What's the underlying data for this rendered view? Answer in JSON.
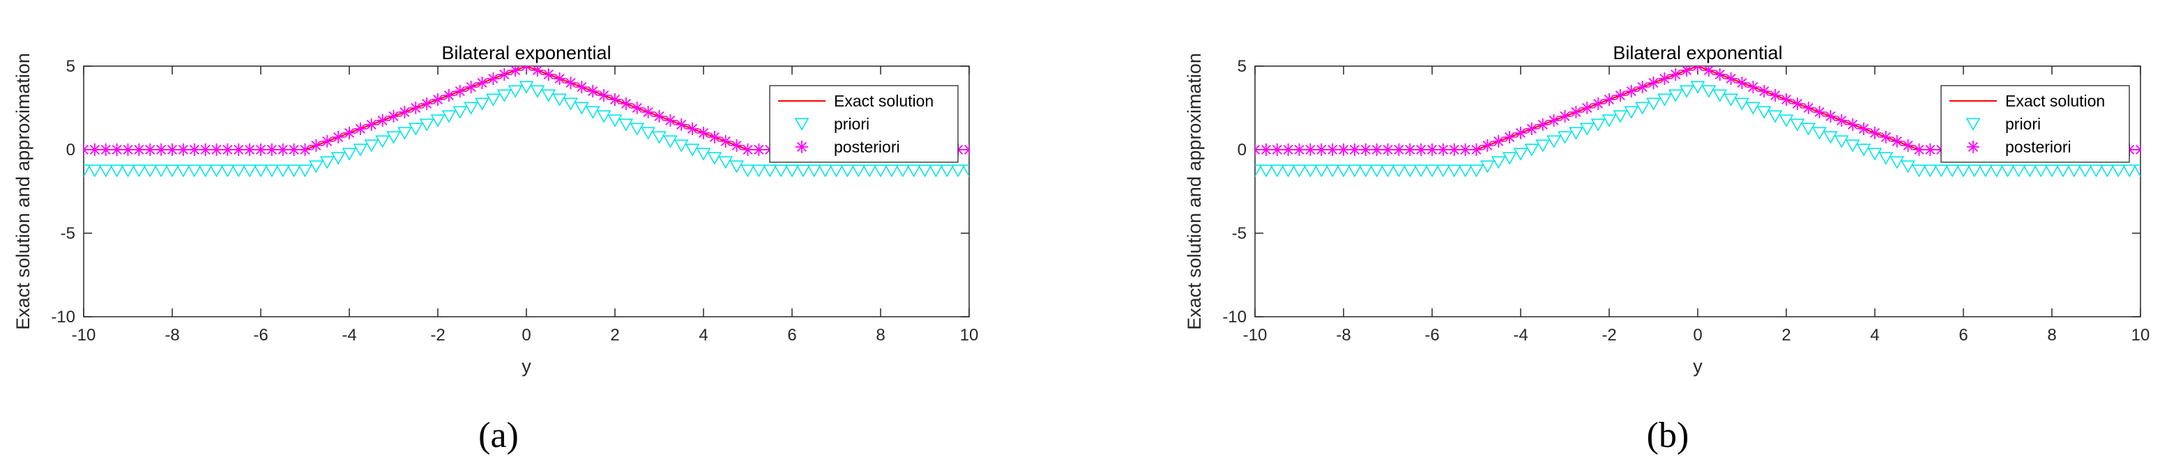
{
  "colors": {
    "exact": "#ff0000",
    "priori": "#00e5e5",
    "posteriori": "#ff00ff",
    "axis": "#262626",
    "frame": "#262626"
  },
  "chart_data": [
    {
      "type": "line",
      "title": "Bilateral exponential",
      "xlabel": "y",
      "ylabel": "Exact solution and approximation",
      "xlim": [
        -10,
        10
      ],
      "ylim": [
        -10,
        5
      ],
      "xticks": [
        -10,
        -8,
        -6,
        -4,
        -2,
        0,
        2,
        4,
        6,
        8,
        10
      ],
      "yticks": [
        -10,
        -5,
        0,
        5
      ],
      "xtick_labels": [
        "-10",
        "-8",
        "-6",
        "-4",
        "-2",
        "0",
        "2",
        "4",
        "6",
        "8",
        "10"
      ],
      "ytick_labels": [
        "-10",
        "-5",
        "0",
        "5"
      ],
      "caption": "(a)",
      "legend_position": "top-right",
      "grid": false,
      "series": [
        {
          "name": "Exact solution",
          "marker": "line",
          "x": [
            -10,
            -5,
            0,
            5,
            10
          ],
          "y": [
            0,
            0,
            5,
            0,
            0
          ]
        },
        {
          "name": "priori",
          "marker": "triangle-down",
          "x_range": [
            -10,
            10
          ],
          "num_points": 81,
          "peak": 3.75,
          "base": -1.25,
          "kink": 5
        },
        {
          "name": "posteriori",
          "marker": "asterisk",
          "x_range": [
            -10,
            10
          ],
          "num_points": 81,
          "peak": 5,
          "base": 0,
          "kink": 5
        }
      ]
    },
    {
      "type": "line",
      "title": "Bilateral exponential",
      "xlabel": "y",
      "ylabel": "Exact solution and approximation",
      "xlim": [
        -10,
        10
      ],
      "ylim": [
        -10,
        5
      ],
      "xticks": [
        -10,
        -8,
        -6,
        -4,
        -2,
        0,
        2,
        4,
        6,
        8,
        10
      ],
      "yticks": [
        -10,
        -5,
        0,
        5
      ],
      "xtick_labels": [
        "-10",
        "-8",
        "-6",
        "-4",
        "-2",
        "0",
        "2",
        "4",
        "6",
        "8",
        "10"
      ],
      "ytick_labels": [
        "-10",
        "-5",
        "0",
        "5"
      ],
      "caption": "(b)",
      "legend_position": "top-right",
      "grid": false,
      "series": [
        {
          "name": "Exact solution",
          "marker": "line",
          "x": [
            -10,
            -5,
            0,
            5,
            10
          ],
          "y": [
            0,
            0,
            5,
            0,
            0
          ]
        },
        {
          "name": "priori",
          "marker": "triangle-down",
          "x_range": [
            -10,
            10
          ],
          "num_points": 81,
          "peak": 3.75,
          "base": -1.25,
          "kink": 5
        },
        {
          "name": "posteriori",
          "marker": "asterisk",
          "x_range": [
            -10,
            10
          ],
          "num_points": 81,
          "peak": 5,
          "base": 0,
          "kink": 5
        }
      ]
    }
  ]
}
